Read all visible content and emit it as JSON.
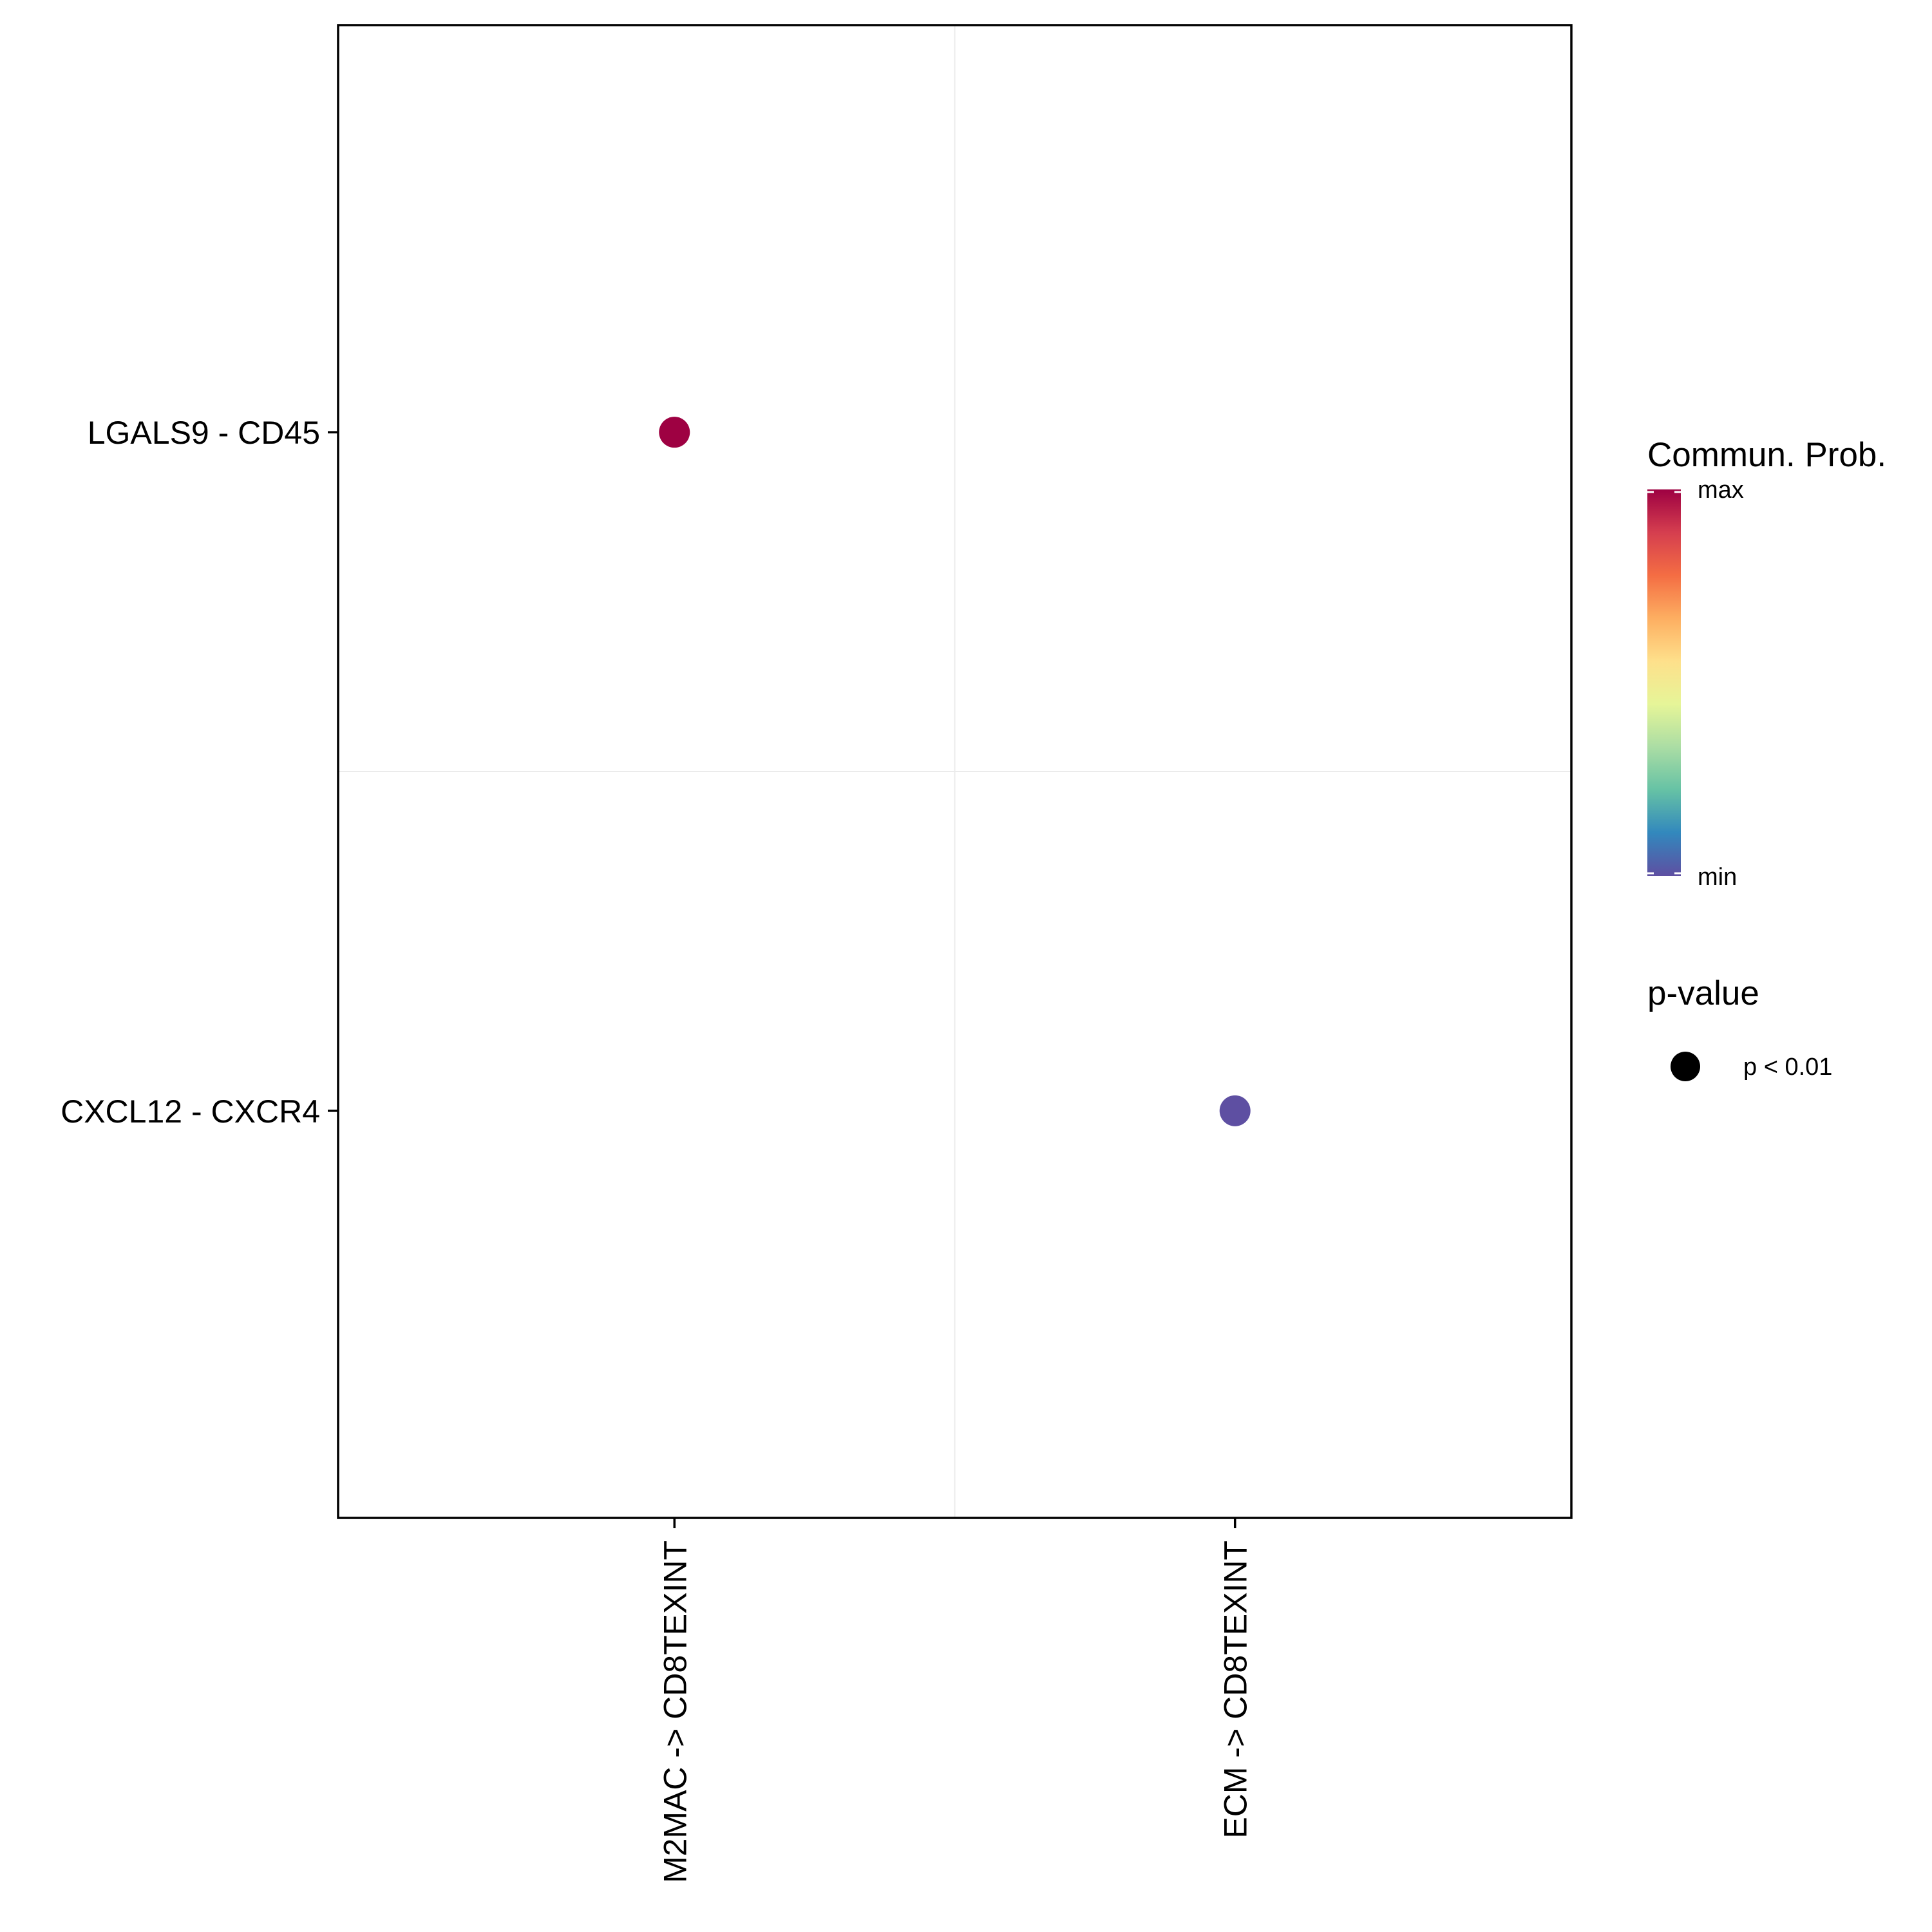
{
  "chart_data": {
    "type": "scatter",
    "x_categories": [
      "M2MAC -> CD8TEXINT",
      "ECM -> CD8TEXINT"
    ],
    "y_categories": [
      "LGALS9 - CD45",
      "CXCL12 - CXCR4"
    ],
    "points": [
      {
        "x": "M2MAC -> CD8TEXINT",
        "y": "LGALS9 - CD45",
        "level": "max",
        "color": "#9E0142"
      },
      {
        "x": "ECM -> CD8TEXINT",
        "y": "CXCL12 - CXCR4",
        "level": "min",
        "color": "#5E4FA2"
      }
    ],
    "grid": true,
    "legend": {
      "placement": "right",
      "color": {
        "title": "Commun. Prob.",
        "max_label": "max",
        "min_label": "min",
        "colors": [
          "#5E4FA2",
          "#3288BD",
          "#66C2A5",
          "#ABDDA4",
          "#E6F598",
          "#FEE08B",
          "#FDAE61",
          "#F46D43",
          "#D53E4F",
          "#9E0142"
        ]
      },
      "size": {
        "title": "p-value",
        "label": "p < 0.01"
      }
    }
  }
}
